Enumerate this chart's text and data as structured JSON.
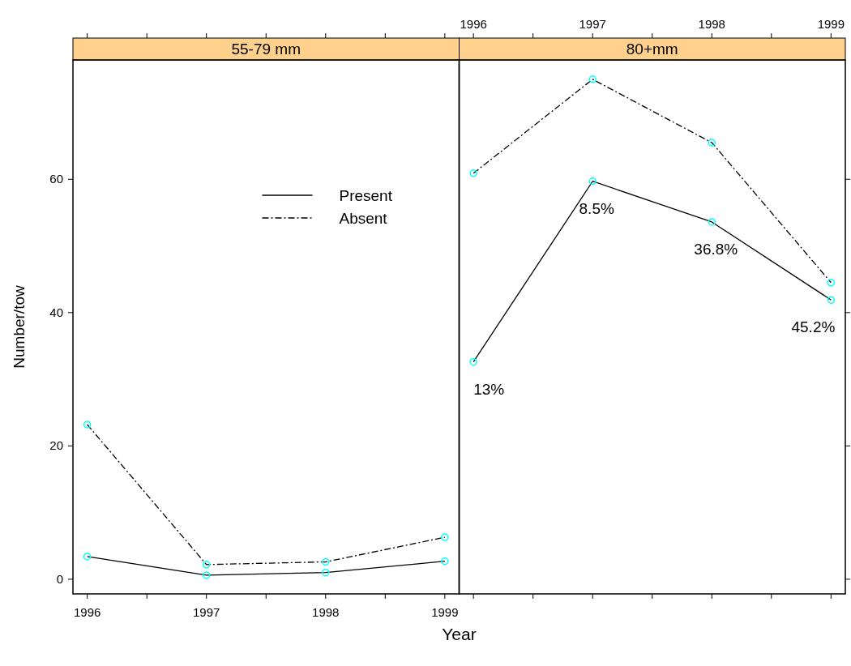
{
  "chart_data": [
    {
      "type": "line",
      "title": "55-79 mm",
      "xlabel": "Year",
      "ylabel": "Number/tow",
      "x": [
        1996,
        1997,
        1998,
        1999
      ],
      "series": [
        {
          "name": "Present",
          "color": "#000000",
          "line_style": "solid",
          "values": [
            3.4,
            0.6,
            1.0,
            2.7
          ]
        },
        {
          "name": "Absent",
          "color": "#000000",
          "line_style": "dashed",
          "values": [
            23.2,
            2.2,
            2.6,
            6.3
          ]
        }
      ],
      "marker": "circle",
      "legend": "top right",
      "xlim": [
        1995.88,
        1999.12
      ],
      "xticks": [
        1996,
        {
          "value": 1996.5,
          "label": null
        },
        1997,
        {
          "value": 1997.5,
          "label": null
        },
        1998,
        {
          "value": 1998.5,
          "label": null
        },
        1999
      ],
      "ylim": [
        -2.2,
        77.9
      ],
      "yticks": [
        0,
        20,
        40,
        60
      ]
    },
    {
      "type": "line",
      "title": "80+mm",
      "x": [
        1996,
        1997,
        1998,
        1999
      ],
      "series": [
        {
          "color": "#000000",
          "line_style": "solid",
          "values": [
            32.6,
            59.7,
            53.6,
            41.9
          ]
        },
        {
          "color": "#000000",
          "line_style": "dashed",
          "values": [
            60.9,
            75.0,
            65.5,
            44.5
          ]
        }
      ],
      "marker": "circle",
      "tick_labels": "x",
      "xlim": [
        1995.88,
        1999.12
      ],
      "xticks": [
        1996,
        {
          "value": 1996.5,
          "label": null
        },
        1997,
        {
          "value": 1997.5,
          "label": null
        },
        1998,
        {
          "value": 1998.5,
          "label": null
        },
        1999
      ],
      "ylim": [
        -2.2,
        77.9
      ],
      "yticks": [
        0,
        20,
        40,
        60
      ],
      "annotations": [
        {
          "text": "13%",
          "x": 1996,
          "y": 32.6
        },
        {
          "text": "8.5%",
          "x": 1997,
          "y": 59.7
        },
        {
          "text": "36.8%",
          "x": 1998,
          "y": 53.6
        },
        {
          "text": "45.2%",
          "x": 1999,
          "y": 41.9
        }
      ]
    }
  ]
}
